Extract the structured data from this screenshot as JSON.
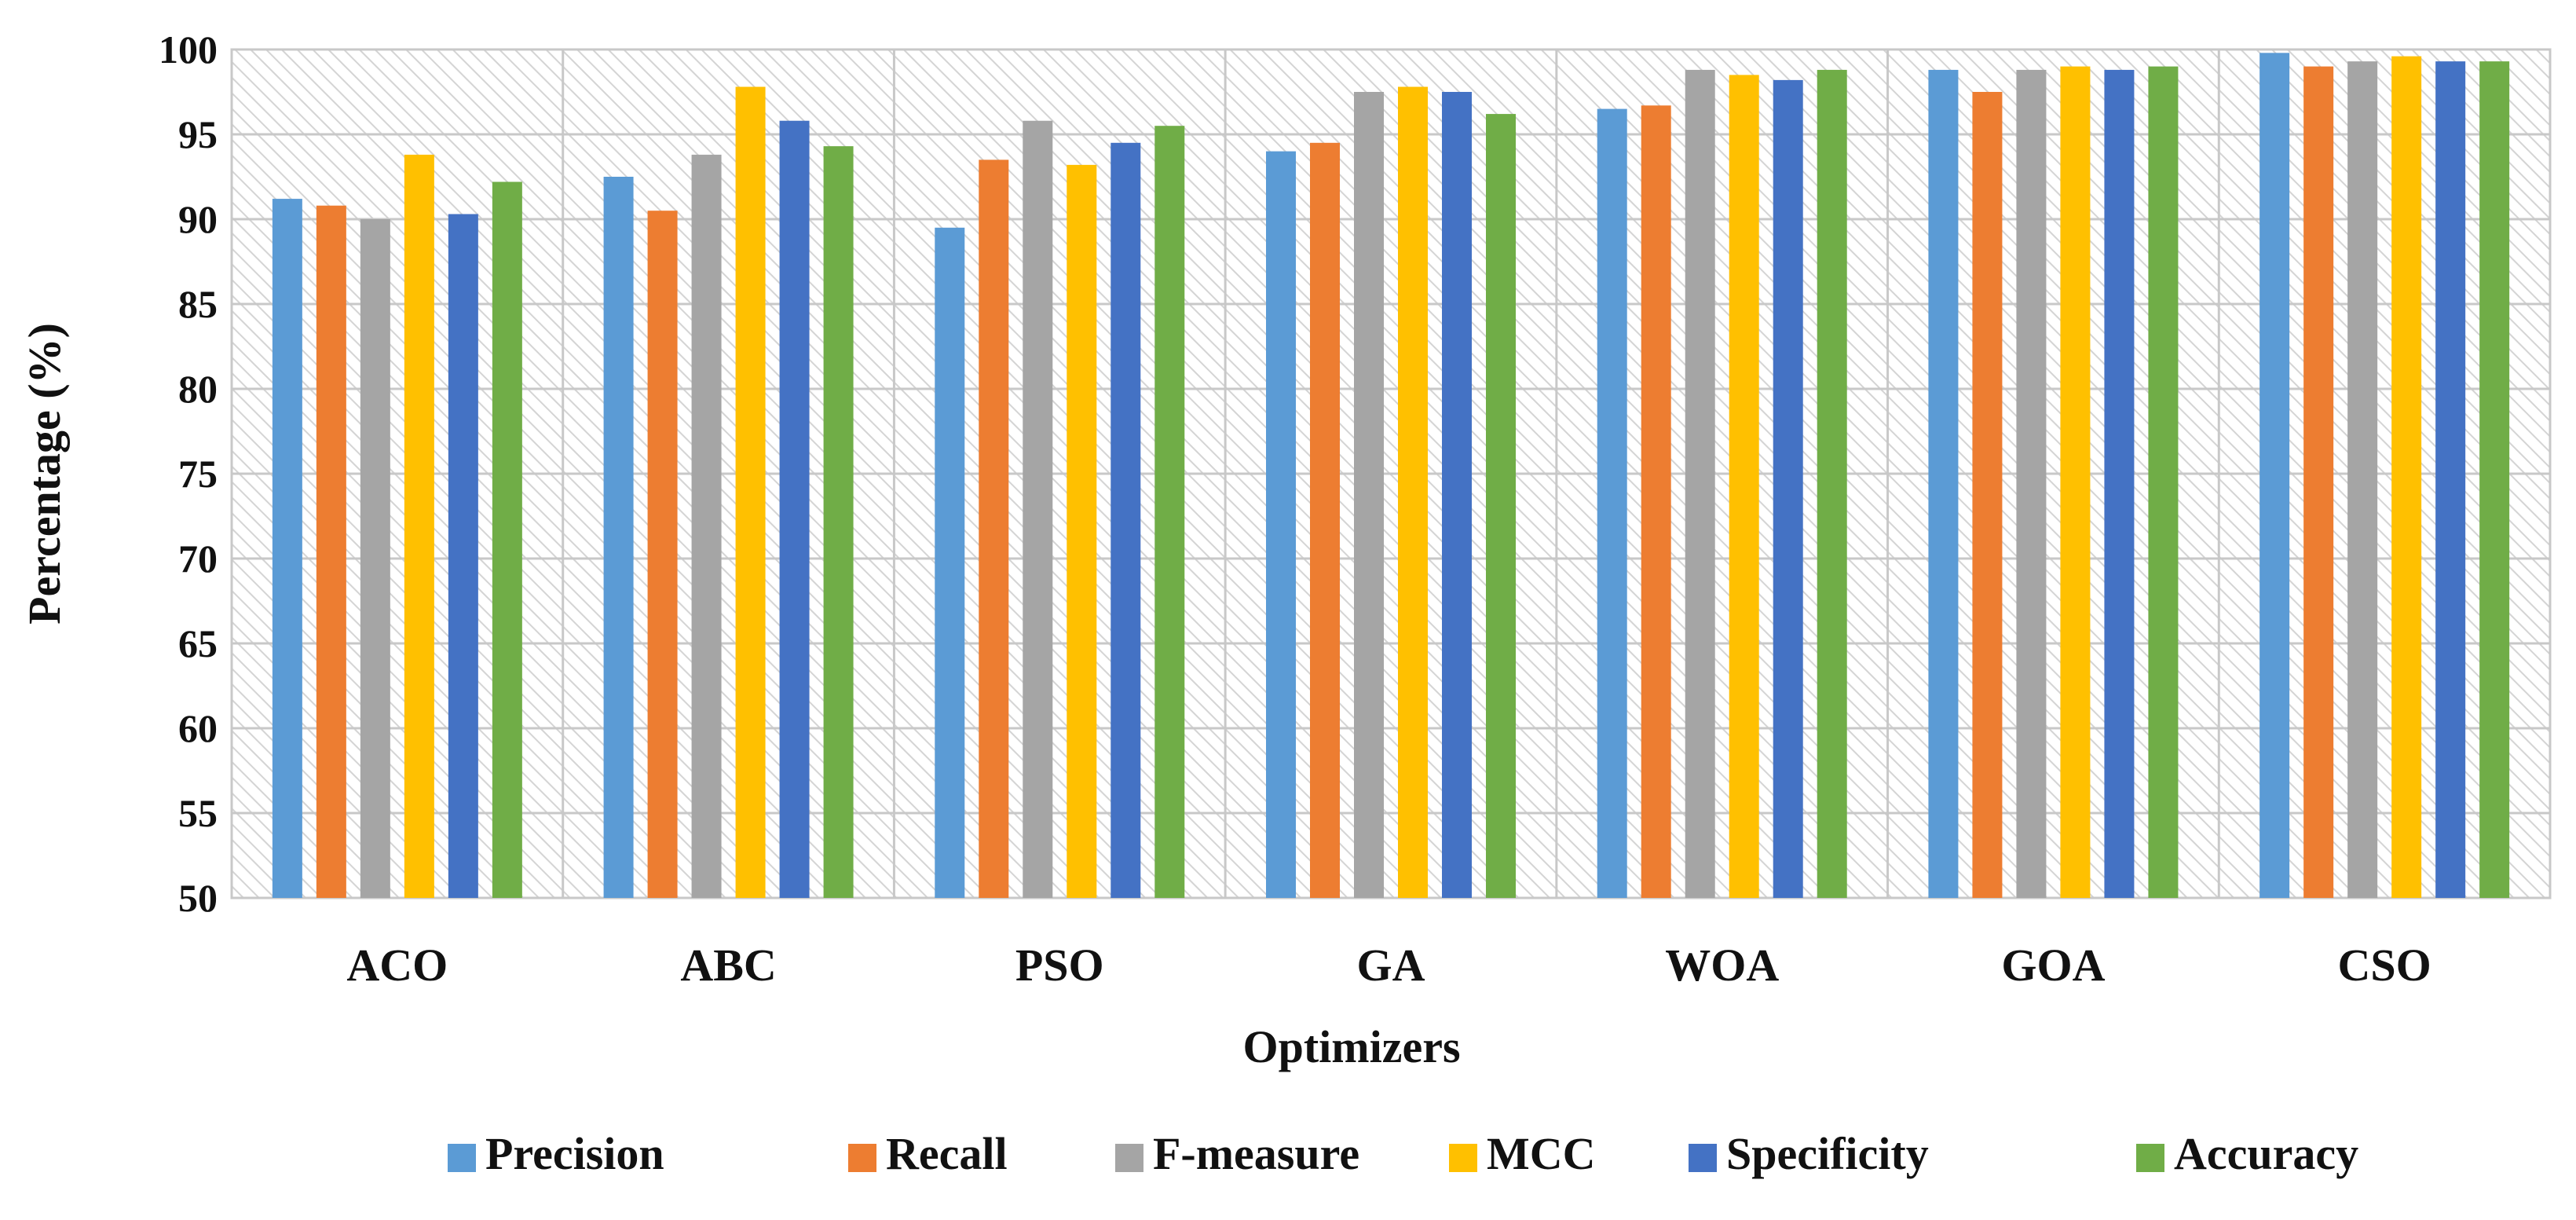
{
  "chart_data": {
    "type": "bar",
    "title": "",
    "xlabel": "Optimizers",
    "ylabel": "Percentage (%)",
    "ylim": [
      50,
      100
    ],
    "yticks": [
      50,
      55,
      60,
      65,
      70,
      75,
      80,
      85,
      90,
      95,
      100
    ],
    "grid": true,
    "legend_position": "bottom",
    "categories": [
      "ACO",
      "ABC",
      "PSO",
      "GA",
      "WOA",
      "GOA",
      "CSO"
    ],
    "series": [
      {
        "name": "Precision",
        "color": "#5b9bd5",
        "values": [
          91.2,
          92.5,
          89.5,
          94.0,
          96.5,
          98.8,
          99.8
        ]
      },
      {
        "name": "Recall",
        "color": "#ed7d31",
        "values": [
          90.8,
          90.5,
          93.5,
          94.5,
          96.7,
          97.5,
          99.0
        ]
      },
      {
        "name": "F-measure",
        "color": "#a5a5a5",
        "values": [
          90.0,
          93.8,
          95.8,
          97.5,
          98.8,
          98.8,
          99.3
        ]
      },
      {
        "name": "MCC",
        "color": "#ffc000",
        "values": [
          93.8,
          97.8,
          93.2,
          97.8,
          98.5,
          99.0,
          99.6
        ]
      },
      {
        "name": "Specificity",
        "color": "#4472c4",
        "values": [
          90.3,
          95.8,
          94.5,
          97.5,
          98.2,
          98.8,
          99.3
        ]
      },
      {
        "name": "Accuracy",
        "color": "#70ad47",
        "values": [
          92.2,
          94.3,
          95.5,
          96.2,
          98.8,
          99.0,
          99.3
        ]
      }
    ]
  }
}
